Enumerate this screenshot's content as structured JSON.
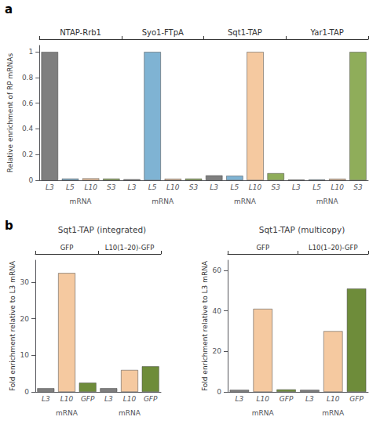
{
  "chart_data": [
    {
      "type": "bar",
      "annotations": [
        "a"
      ],
      "subtitle": [
        "NTAP-Rrb1",
        "Syo1-FTpA",
        "Sqt1-TAP",
        "Yar1-TAP"
      ],
      "xlabel": "mRNA",
      "ylabel": "Relative enrichment of RP mRNAs",
      "categories": [
        "L3",
        "L5",
        "L10",
        "S3",
        "L3",
        "L5",
        "L10",
        "S3",
        "L3",
        "L5",
        "L10",
        "S3",
        "L3",
        "L5",
        "L10",
        "S3"
      ],
      "values": [
        1.0,
        0.013,
        0.015,
        0.013,
        0.008,
        1.0,
        0.012,
        0.013,
        0.038,
        0.035,
        1.0,
        0.055,
        0.005,
        0.006,
        0.012,
        1.0
      ],
      "colors": [
        "#7f7f7f",
        "#7fb3d3",
        "#f5c9a0",
        "#8fad5a",
        "#7f7f7f",
        "#7fb3d3",
        "#f5c9a0",
        "#8fad5a",
        "#7f7f7f",
        "#7fb3d3",
        "#f5c9a0",
        "#8fad5a",
        "#7f7f7f",
        "#7fb3d3",
        "#f5c9a0",
        "#8fad5a"
      ],
      "ylim": [
        0,
        1.05
      ],
      "yticks": [
        0,
        0.2,
        0.4,
        0.6,
        0.8,
        1
      ],
      "grid": false
    },
    {
      "type": "bar",
      "title": "Sqt1-TAP (integrated)",
      "annotations": [
        "b"
      ],
      "subtitle": [
        "GFP",
        "L10(1–20)-GFP"
      ],
      "xlabel": "mRNA",
      "ylabel": "Fold enrichment relative to L3 mRNA",
      "categories": [
        "L3",
        "L10",
        "GFP",
        "L3",
        "L10",
        "GFP"
      ],
      "values": [
        1.0,
        32.5,
        2.5,
        1.0,
        6.0,
        7.0
      ],
      "colors": [
        "#7f7f7f",
        "#f5c9a0",
        "#6e8c3a",
        "#7f7f7f",
        "#f5c9a0",
        "#6e8c3a"
      ],
      "ylim": [
        0,
        36
      ],
      "yticks": [
        0,
        10,
        20,
        30
      ],
      "grid": false
    },
    {
      "type": "bar",
      "title": "Sqt1-TAP (multicopy)",
      "subtitle": [
        "GFP",
        "L10(1–20)-GFP"
      ],
      "xlabel": "mRNA",
      "ylabel": "Fold enrichment relative to L3 mRNA",
      "categories": [
        "L3",
        "L10",
        "GFP",
        "L3",
        "L10",
        "GFP"
      ],
      "values": [
        1.0,
        41.0,
        1.2,
        1.0,
        30.0,
        51.0
      ],
      "colors": [
        "#7f7f7f",
        "#f5c9a0",
        "#6e8c3a",
        "#7f7f7f",
        "#f5c9a0",
        "#6e8c3a"
      ],
      "ylim": [
        0,
        65
      ],
      "yticks": [
        0,
        20,
        40,
        60
      ],
      "grid": false
    }
  ]
}
